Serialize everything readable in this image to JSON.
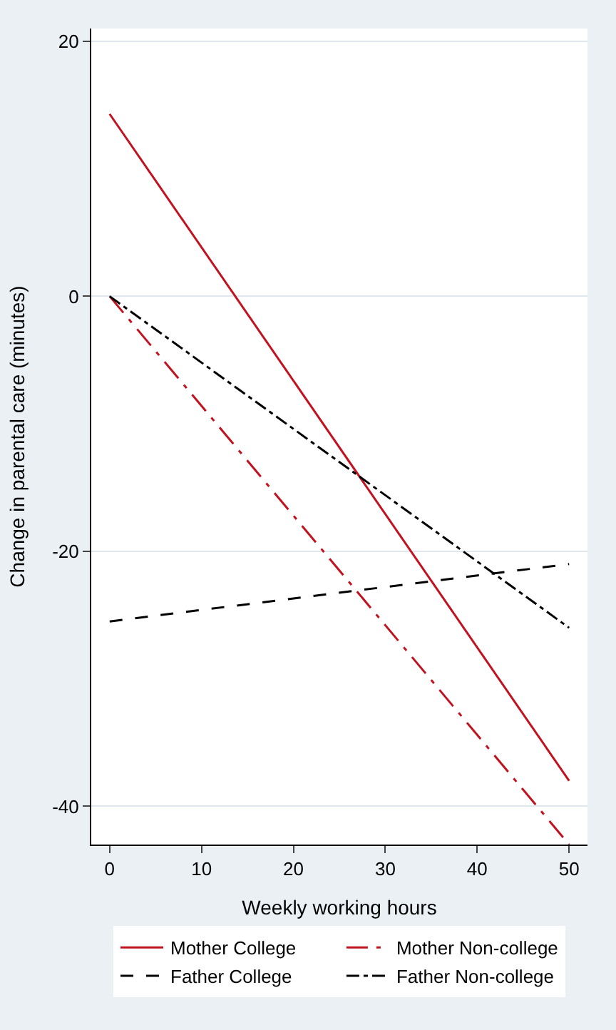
{
  "chart_data": {
    "type": "line",
    "xlabel": "Weekly working hours",
    "ylabel": "Change in parental care (minutes)",
    "x": [
      0,
      50
    ],
    "xlim": [
      -2,
      52
    ],
    "xticks": [
      0,
      10,
      20,
      30,
      40,
      50
    ],
    "ylim": [
      -43,
      21
    ],
    "yticks": [
      {
        "value": 20,
        "label": "20"
      },
      {
        "value": 0,
        "label": "0"
      },
      {
        "value": -20,
        "label": "-20"
      },
      {
        "value": -40,
        "label": "-40"
      }
    ],
    "grid": "y",
    "legend": "bottom",
    "marker": "none",
    "series": [
      {
        "name": "Mother College",
        "color": "#c1121f",
        "line_style": "solid",
        "values": [
          14.3,
          -38
        ]
      },
      {
        "name": "Mother Non-college",
        "color": "#c1121f",
        "line_style": "longdashdot",
        "values": [
          0,
          -43
        ]
      },
      {
        "name": "Father College",
        "color": "#000000",
        "line_style": "dashed",
        "values": [
          -25.5,
          -21
        ]
      },
      {
        "name": "Father Non-college",
        "color": "#000000",
        "line_style": "dashdot",
        "values": [
          0,
          -26
        ]
      }
    ]
  }
}
